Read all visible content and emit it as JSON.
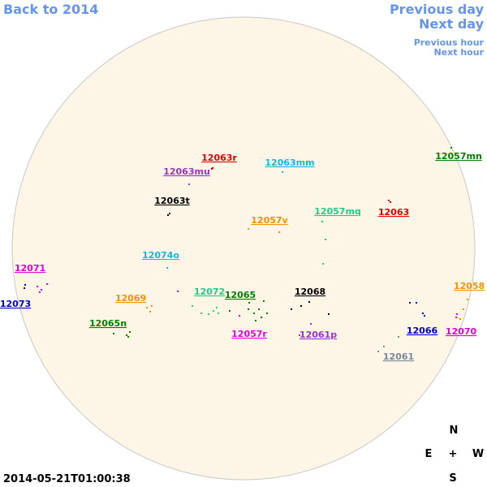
{
  "nav": {
    "back": "Back to 2014",
    "previous_day": "Previous day",
    "next_day": "Next day",
    "previous_hour": "Previous hour",
    "next_hour": "Next hour"
  },
  "regions": [
    {
      "label": "12063r",
      "color": "#e00000"
    },
    {
      "label": "12063mu",
      "color": "#9933cc"
    },
    {
      "label": "12063mm",
      "color": "#19b5e0"
    },
    {
      "label": "12057mn",
      "color": "#008000"
    },
    {
      "label": "12063t",
      "color": "#000000"
    },
    {
      "label": "12057mq",
      "color": "#22cc88"
    },
    {
      "label": "12063",
      "color": "#e00000"
    },
    {
      "label": "12057v",
      "color": "#f59200"
    },
    {
      "label": "12074o",
      "color": "#19b5e0"
    },
    {
      "label": "12071",
      "color": "#e000e0"
    },
    {
      "label": "12073",
      "color": "#0000cc"
    },
    {
      "label": "12069",
      "color": "#f59200"
    },
    {
      "label": "12072",
      "color": "#22cc88"
    },
    {
      "label": "12065",
      "color": "#008000"
    },
    {
      "label": "12068",
      "color": "#000000"
    },
    {
      "label": "12058",
      "color": "#f59200"
    },
    {
      "label": "12065n",
      "color": "#008000"
    },
    {
      "label": "12057r",
      "color": "#e000e0"
    },
    {
      "label": "12061p",
      "color": "#9933cc"
    },
    {
      "label": "12066",
      "color": "#0000cc"
    },
    {
      "label": "12070",
      "color": "#e000e0"
    },
    {
      "label": "12061",
      "color": "#778899"
    }
  ],
  "compass": {
    "north": "N",
    "east": "E",
    "center": "+",
    "west": "W",
    "south": "S"
  },
  "timestamp": "2014-05-21T01:00:38"
}
